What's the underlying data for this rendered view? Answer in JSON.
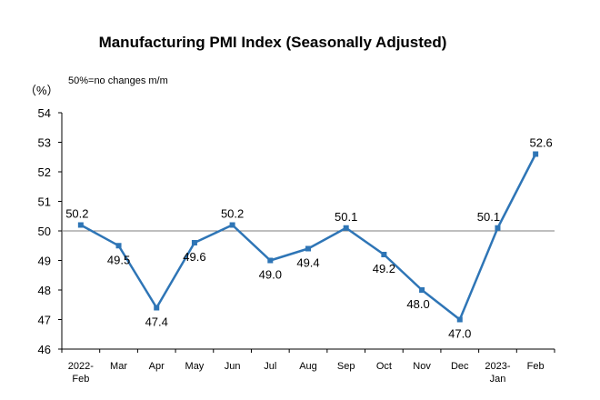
{
  "chart_data": {
    "type": "line",
    "title": "Manufacturing PMI Index (Seasonally Adjusted)",
    "annotation": "50%=no changes m/m",
    "unit_label": "（%）",
    "categories": [
      [
        "2022-",
        "Feb"
      ],
      [
        "Mar"
      ],
      [
        "Apr"
      ],
      [
        "May"
      ],
      [
        "Jun"
      ],
      [
        "Jul"
      ],
      [
        "Aug"
      ],
      [
        "Sep"
      ],
      [
        "Oct"
      ],
      [
        "Nov"
      ],
      [
        "Dec"
      ],
      [
        "2023-",
        "Jan"
      ],
      [
        "Feb"
      ]
    ],
    "values": [
      50.2,
      49.5,
      47.4,
      49.6,
      50.2,
      49.0,
      49.4,
      50.1,
      49.2,
      48.0,
      47.0,
      50.1,
      52.6
    ],
    "data_labels": [
      "50.2",
      "49.5",
      "47.4",
      "49.6",
      "50.2",
      "49.0",
      "49.4",
      "50.1",
      "49.2",
      "48.0",
      "47.0",
      "50.1",
      "52.6"
    ],
    "ylim": [
      46,
      54
    ],
    "yticks": [
      "46",
      "47",
      "48",
      "49",
      "50",
      "51",
      "52",
      "53",
      "54"
    ],
    "reference_line": 50,
    "grid": false,
    "line_color": "#2e75b6",
    "marker_color": "#2e75b6",
    "reference_line_color": "#7f7f7f"
  }
}
